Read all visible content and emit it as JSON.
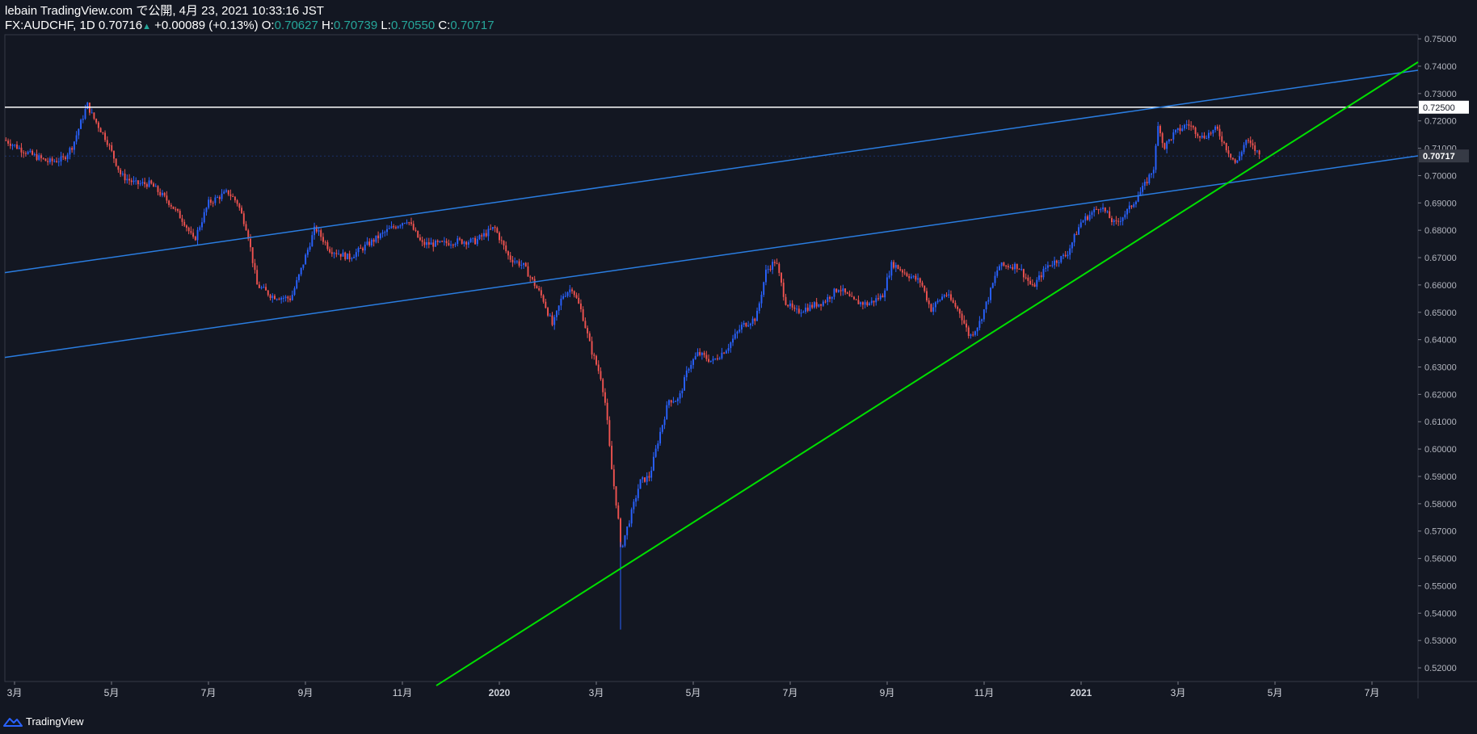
{
  "header": {
    "title_line": "lebain TradingView.com で公開, 4月 23, 2021 10:33:16 JST",
    "symbol": "FX:AUDCHF, 1D",
    "last": "0.70716",
    "change": "+0.00089 (+0.13%)",
    "o_label": "O:",
    "o_val": "0.70627",
    "h_label": "H:",
    "h_val": "0.70739",
    "l_label": "L:",
    "l_val": "0.70550",
    "c_label": "C:",
    "c_val": "0.70717"
  },
  "footer": {
    "brand": "TradingView"
  },
  "colors": {
    "background": "#131722",
    "up": "#2962ff",
    "down": "#ef5350",
    "channel": "#2a7de1",
    "trend": "#00e000",
    "resistance": "#ffffff"
  },
  "chart_data": {
    "type": "candlestick",
    "y_ticks": [
      "0.75000",
      "0.74000",
      "0.73000",
      "0.72000",
      "0.71000",
      "0.70000",
      "0.69000",
      "0.68000",
      "0.67000",
      "0.66000",
      "0.65000",
      "0.64000",
      "0.63000",
      "0.62000",
      "0.61000",
      "0.60000",
      "0.59000",
      "0.58000",
      "0.57000",
      "0.56000",
      "0.55000",
      "0.54000",
      "0.53000",
      "0.52000"
    ],
    "ylim": [
      0.515,
      0.7515
    ],
    "x_ticks": [
      {
        "label": "3月",
        "t": 0.5
      },
      {
        "label": "5月",
        "t": 2.5
      },
      {
        "label": "7月",
        "t": 4.5
      },
      {
        "label": "9月",
        "t": 6.5
      },
      {
        "label": "11月",
        "t": 8.5
      },
      {
        "label": "2020",
        "t": 10.5
      },
      {
        "label": "3月",
        "t": 12.5
      },
      {
        "label": "5月",
        "t": 14.5
      },
      {
        "label": "7月",
        "t": 16.5
      },
      {
        "label": "9月",
        "t": 18.5
      },
      {
        "label": "11月",
        "t": 20.5
      },
      {
        "label": "2021",
        "t": 22.5
      },
      {
        "label": "3月",
        "t": 24.5
      },
      {
        "label": "5月",
        "t": 26.5
      },
      {
        "label": "7月",
        "t": 28.5
      }
    ],
    "xlim": [
      0.3,
      29.45
    ],
    "price_path": [
      [
        0.3,
        0.713
      ],
      [
        0.8,
        0.708
      ],
      [
        1.2,
        0.705
      ],
      [
        1.5,
        0.706
      ],
      [
        1.7,
        0.711
      ],
      [
        2.0,
        0.726
      ],
      [
        2.1,
        0.722
      ],
      [
        2.4,
        0.713
      ],
      [
        2.7,
        0.7
      ],
      [
        3.0,
        0.697
      ],
      [
        3.3,
        0.697
      ],
      [
        3.7,
        0.69
      ],
      [
        4.0,
        0.683
      ],
      [
        4.2,
        0.676
      ],
      [
        4.5,
        0.69
      ],
      [
        4.9,
        0.694
      ],
      [
        5.1,
        0.69
      ],
      [
        5.3,
        0.68
      ],
      [
        5.5,
        0.66
      ],
      [
        5.8,
        0.656
      ],
      [
        6.2,
        0.655
      ],
      [
        6.4,
        0.665
      ],
      [
        6.7,
        0.681
      ],
      [
        7.0,
        0.673
      ],
      [
        7.4,
        0.67
      ],
      [
        7.8,
        0.675
      ],
      [
        8.2,
        0.68
      ],
      [
        8.6,
        0.684
      ],
      [
        8.9,
        0.675
      ],
      [
        9.3,
        0.675
      ],
      [
        9.6,
        0.676
      ],
      [
        10.0,
        0.676
      ],
      [
        10.4,
        0.681
      ],
      [
        10.7,
        0.67
      ],
      [
        11.0,
        0.667
      ],
      [
        11.2,
        0.661
      ],
      [
        11.4,
        0.655
      ],
      [
        11.6,
        0.645
      ],
      [
        11.8,
        0.656
      ],
      [
        12.0,
        0.659
      ],
      [
        12.2,
        0.65
      ],
      [
        12.4,
        0.636
      ],
      [
        12.6,
        0.626
      ],
      [
        12.7,
        0.615
      ],
      [
        12.8,
        0.595
      ],
      [
        12.95,
        0.575
      ],
      [
        13.0,
        0.563
      ],
      [
        13.2,
        0.575
      ],
      [
        13.4,
        0.588
      ],
      [
        13.6,
        0.59
      ],
      [
        13.8,
        0.605
      ],
      [
        14.0,
        0.618
      ],
      [
        14.2,
        0.618
      ],
      [
        14.4,
        0.63
      ],
      [
        14.6,
        0.635
      ],
      [
        14.9,
        0.632
      ],
      [
        15.2,
        0.637
      ],
      [
        15.5,
        0.645
      ],
      [
        15.8,
        0.648
      ],
      [
        16.0,
        0.665
      ],
      [
        16.2,
        0.669
      ],
      [
        16.4,
        0.654
      ],
      [
        16.6,
        0.65
      ],
      [
        16.9,
        0.652
      ],
      [
        17.2,
        0.654
      ],
      [
        17.5,
        0.659
      ],
      [
        17.8,
        0.654
      ],
      [
        18.1,
        0.653
      ],
      [
        18.4,
        0.656
      ],
      [
        18.6,
        0.668
      ],
      [
        18.9,
        0.664
      ],
      [
        19.2,
        0.661
      ],
      [
        19.4,
        0.651
      ],
      [
        19.7,
        0.657
      ],
      [
        20.0,
        0.65
      ],
      [
        20.2,
        0.641
      ],
      [
        20.4,
        0.646
      ],
      [
        20.6,
        0.656
      ],
      [
        20.8,
        0.667
      ],
      [
        21.2,
        0.667
      ],
      [
        21.5,
        0.659
      ],
      [
        21.8,
        0.667
      ],
      [
        22.2,
        0.671
      ],
      [
        22.5,
        0.683
      ],
      [
        22.9,
        0.689
      ],
      [
        23.2,
        0.682
      ],
      [
        23.5,
        0.688
      ],
      [
        23.8,
        0.696
      ],
      [
        24.0,
        0.703
      ],
      [
        24.1,
        0.72
      ],
      [
        24.2,
        0.71
      ],
      [
        24.4,
        0.715
      ],
      [
        24.7,
        0.719
      ],
      [
        25.0,
        0.714
      ],
      [
        25.3,
        0.717
      ],
      [
        25.5,
        0.71
      ],
      [
        25.7,
        0.704
      ],
      [
        25.9,
        0.713
      ],
      [
        26.2,
        0.7072
      ]
    ],
    "spike_low": {
      "t": 13.0,
      "value": 0.534
    },
    "lines": {
      "resistance": {
        "value": 0.725
      },
      "channel_upper": {
        "p1": [
          0.3,
          0.6645
        ],
        "p2": [
          29.45,
          0.7385
        ]
      },
      "channel_lower": {
        "p1": [
          0.3,
          0.6335
        ],
        "p2": [
          29.45,
          0.7072
        ]
      },
      "trend": {
        "p1": [
          9.2,
          0.5135
        ],
        "p2": [
          29.45,
          0.7415
        ]
      }
    },
    "price_labels": {
      "resistance": "0.72500",
      "current": "0.70717"
    }
  }
}
